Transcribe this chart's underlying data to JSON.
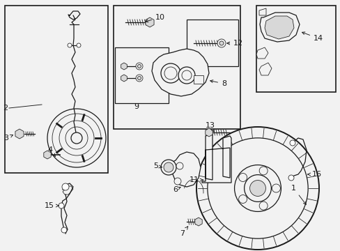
{
  "bg_color": "#f2f2f2",
  "line_color": "#1a1a1a",
  "white": "#ffffff",
  "gray_light": "#d8d8d8",
  "gray_med": "#b0b0b0",
  "label_fs": 7.5,
  "lw_main": 0.9,
  "lw_thin": 0.55,
  "lw_thick": 1.4
}
